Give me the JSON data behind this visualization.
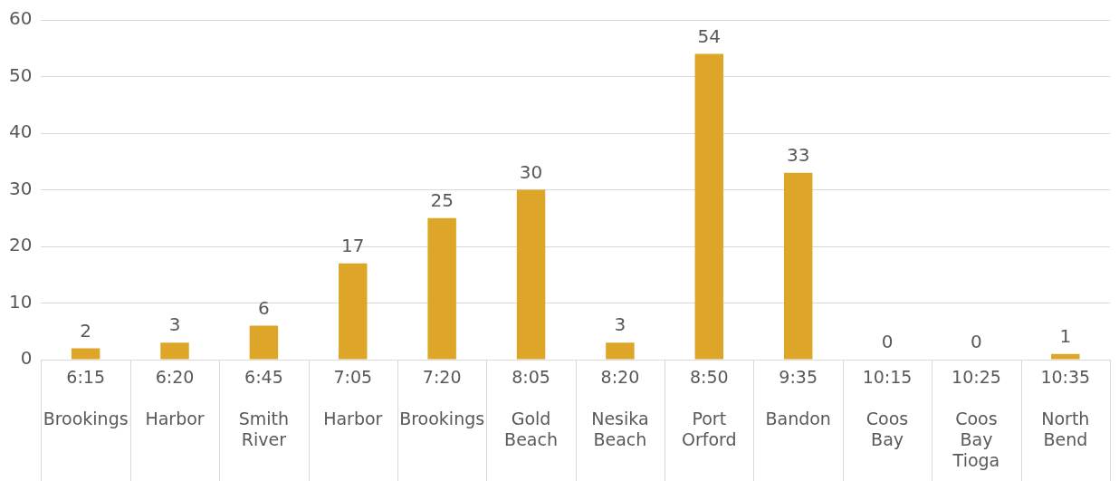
{
  "chart_data": {
    "type": "bar",
    "categories": [
      "6:15\nBrookings",
      "6:20\nHarbor",
      "6:45\nSmith River",
      "7:05\nHarbor",
      "7:20\nBrookings",
      "8:05\nGold Beach",
      "8:20\nNesika Beach",
      "8:50\nPort Orford",
      "9:35\nBandon",
      "10:15\nCoos Bay",
      "10:25\nCoos Bay Tioga",
      "10:35\nNorth Bend"
    ],
    "values": [
      2,
      3,
      6,
      17,
      25,
      30,
      3,
      54,
      33,
      0,
      0,
      1
    ],
    "color": "#dea628",
    "ylim": [
      0,
      60
    ],
    "yticks": [
      0,
      10,
      20,
      30,
      40,
      50,
      60
    ],
    "grid": "y",
    "data_labels": true,
    "legend": false
  }
}
